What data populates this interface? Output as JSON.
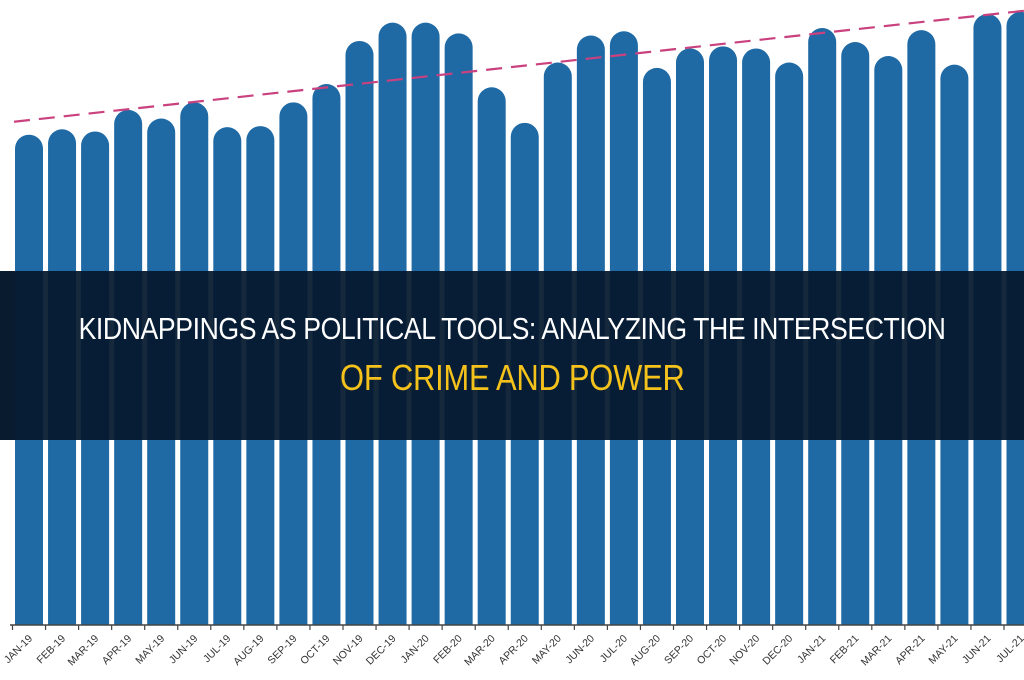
{
  "title": {
    "line1": "KIDNAPPINGS AS POLITICAL TOOLS: ANALYZING THE INTERSECTION",
    "line2": "OF CRIME AND POWER"
  },
  "colors": {
    "bar": "#1f6aa5",
    "trendline": "#c9417e",
    "banner_bg": "#04182c",
    "title_white": "#ffffff",
    "title_yellow": "#f5c21b",
    "axis": "#444444"
  },
  "chart_data": {
    "type": "bar",
    "title": "",
    "xlabel": "",
    "ylabel": "",
    "grid": false,
    "legend": null,
    "categories": [
      "JAN-19",
      "FEB-19",
      "MAR-19",
      "APR-19",
      "MAY-19",
      "JUN-19",
      "JUL-19",
      "AUG-19",
      "SEP-19",
      "OCT-19",
      "NOV-19",
      "DEC-19",
      "JAN-20",
      "FEB-20",
      "MAR-20",
      "APR-20",
      "MAY-20",
      "JUN-20",
      "JUL-20",
      "AUG-20",
      "SEP-20",
      "OCT-20",
      "NOV-20",
      "DEC-20",
      "JAN-21",
      "FEB-21",
      "MAR-21",
      "APR-21",
      "MAY-21",
      "JUN-21",
      "JUL-21"
    ],
    "values": [
      455,
      460,
      458,
      478,
      470,
      485,
      462,
      463,
      485,
      502,
      542,
      559,
      559,
      549,
      499,
      466,
      522,
      547,
      551,
      517,
      535,
      537,
      535,
      522,
      554,
      541,
      528,
      552,
      520,
      567,
      569
    ],
    "ylim": [
      0,
      580
    ],
    "trendline": {
      "style": "dashed",
      "start": 467,
      "end": 570
    },
    "annotations": []
  }
}
